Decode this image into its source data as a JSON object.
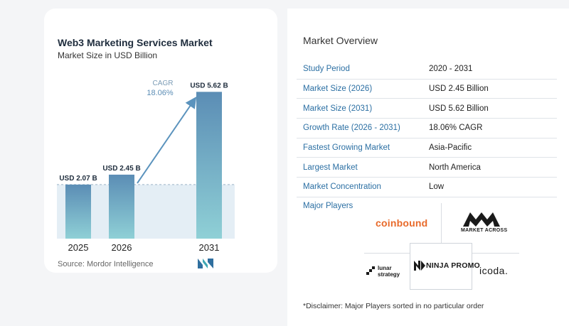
{
  "header": {
    "title": "Web3 Marketing Services Market",
    "subtitle": "Market Size in USD Billion"
  },
  "chart_data": {
    "type": "bar",
    "title": "Web3 Marketing Services Market",
    "subtitle": "Market Size in USD Billion",
    "categories": [
      "2025",
      "2026",
      "2031"
    ],
    "values": [
      2.07,
      2.45,
      5.62
    ],
    "data_labels": [
      "USD 2.07 B",
      "USD 2.45 B",
      "USD 5.62 B"
    ],
    "cagr_label": "CAGR",
    "cagr_value": "18.06%",
    "xlabel": "",
    "ylabel": "",
    "ylim": [
      0,
      6.2
    ],
    "grid": false,
    "bar_color_top": "#5b8db5",
    "bar_color_bottom": "#8fd0d6",
    "arrow_color": "#5b93bd"
  },
  "footer": {
    "source": "Source: Mordor Intelligence"
  },
  "overview": {
    "title": "Market Overview",
    "rows": [
      {
        "key": "Study Period",
        "value": "2020 - 2031"
      },
      {
        "key": "Market Size (2026)",
        "value": "USD 2.45 Billion"
      },
      {
        "key": "Market Size (2031)",
        "value": "USD 5.62 Billion"
      },
      {
        "key": "Growth Rate (2026 - 2031)",
        "value": "18.06% CAGR"
      },
      {
        "key": "Fastest Growing Market",
        "value": "Asia-Pacific"
      },
      {
        "key": "Largest Market",
        "value": "North America"
      },
      {
        "key": "Market Concentration",
        "value": "Low"
      }
    ]
  },
  "players": {
    "label": "Major Players",
    "coinbound": "coinbound",
    "market_across": "MARKET ACROSS",
    "lunar_line1": "lunar",
    "lunar_line2": "strategy",
    "ninja_promo": "NINJA PROMO",
    "icoda": "icoda."
  },
  "disclaimer": "*Disclaimer: Major Players sorted in no particular order"
}
